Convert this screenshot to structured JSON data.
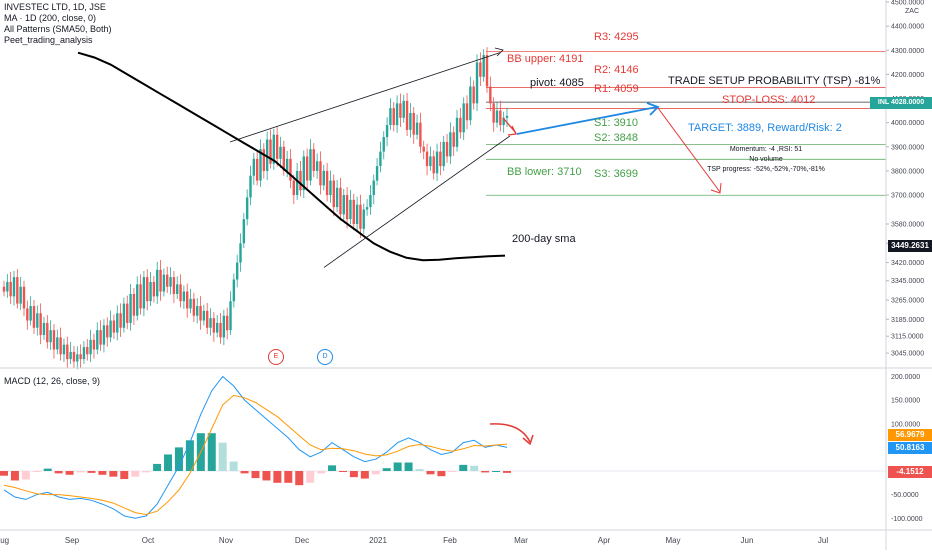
{
  "header": {
    "symbol_line": "INVESTEC LTD, 1D, JSE",
    "ma_line": "MA · 1D (200, close, 0)",
    "patterns_line": "All Patterns (SMA50, Both)",
    "script_line": "Peet_trading_analysis"
  },
  "currency": "ZAC",
  "levels": {
    "r3": "R3: 4295",
    "bb_upper": "BB upper: 4191",
    "r2": "R2: 4146",
    "pivot": "pivot: 4085",
    "r1": "R1: 4059",
    "tsp": "TRADE SETUP PROBABILITY (TSP) -81%",
    "stop_loss": "STOP-LOSS: 4012",
    "s1": "S1: 3910",
    "target": "TARGET: 3889, Reward/Risk: 2",
    "s2": "S2: 3848",
    "bb_lower": "BB lower: 3710",
    "s3": "S3: 3699",
    "momentum": "Momentum: -4 ,RSI: 51",
    "volume": "No volume",
    "tsp_progress": "TSP progress: -52%,-52%,-70%,-81%",
    "sma_label": "200-day sma"
  },
  "price_tags": {
    "last_symbol": "INL",
    "last_price": "4028.0000",
    "sma_price": "3449.2631"
  },
  "event_markers": [
    "E",
    "D"
  ],
  "macd": {
    "title": "MACD (12, 26, close, 9)",
    "signal_tag": "56.9679",
    "macd_tag": "50.8163",
    "hist_tag": "-4.1512"
  },
  "colors": {
    "up": "#26a69a",
    "down": "#ef5350",
    "macd_line": "#2196f3",
    "signal_line": "#ff9800",
    "hist_up_strong": "#26a69a",
    "hist_up_weak": "#b2dfdb",
    "hist_down_strong": "#ef5350",
    "hist_down_weak": "#ffcdd2",
    "level_red": "#e53935",
    "level_green": "#43a047",
    "level_blue": "#1e88e5"
  },
  "chart_data": [
    {
      "type": "candlestick",
      "ylim": [
        3000,
        4500
      ],
      "y_ticks": [
        "4500.0000",
        "4400.0000",
        "4300.0000",
        "4200.0000",
        "4100.0000",
        "4000.0000",
        "3900.0000",
        "3800.0000",
        "3700.0000",
        "3580.0000",
        "3500.0000",
        "3420.0000",
        "3345.0000",
        "3265.0000",
        "3185.0000",
        "3115.0000",
        "3045.0000"
      ],
      "x_ticks": [
        "Aug",
        "Sep",
        "Oct",
        "Nov",
        "Dec",
        "2021",
        "Feb",
        "Mar",
        "Apr",
        "May",
        "Jun",
        "Jul"
      ],
      "close_approx": [
        3300,
        3340,
        3280,
        3360,
        3250,
        3320,
        3230,
        3180,
        3240,
        3150,
        3210,
        3120,
        3170,
        3090,
        3140,
        3060,
        3110,
        3040,
        3080,
        3020,
        3050,
        3010,
        3040,
        3020,
        3070,
        3040,
        3100,
        3060,
        3140,
        3080,
        3160,
        3110,
        3180,
        3130,
        3210,
        3150,
        3250,
        3170,
        3290,
        3200,
        3330,
        3230,
        3360,
        3260,
        3340,
        3280,
        3390,
        3300,
        3370,
        3320,
        3360,
        3290,
        3330,
        3260,
        3300,
        3230,
        3270,
        3200,
        3240,
        3180,
        3220,
        3150,
        3190,
        3130,
        3170,
        3110,
        3200,
        3140,
        3260,
        3350,
        3420,
        3500,
        3600,
        3690,
        3780,
        3850,
        3760,
        3890,
        3800,
        3930,
        3830,
        3950,
        3850,
        3900,
        3800,
        3850,
        3760,
        3700,
        3800,
        3720,
        3860,
        3760,
        3890,
        3800,
        3840,
        3740,
        3800,
        3700,
        3760,
        3650,
        3730,
        3620,
        3700,
        3600,
        3680,
        3580,
        3660,
        3560,
        3640,
        3650,
        3700,
        3760,
        3820,
        3880,
        3940,
        3990,
        4060,
        3990,
        4080,
        4020,
        4090,
        3970,
        4040,
        3950,
        4000,
        3900,
        3880,
        3820,
        3860,
        3790,
        3880,
        3820,
        3920,
        3860,
        3960,
        3900,
        4020,
        3960,
        4080,
        4010,
        4150,
        4080,
        4250,
        4190,
        4280,
        4150,
        4080,
        4000,
        4050,
        3990,
        4020,
        4028
      ],
      "sma_200_approx": [
        4290,
        4270,
        4240,
        4200,
        4160,
        4120,
        4080,
        4040,
        4000,
        3960,
        3920,
        3880,
        3840,
        3780,
        3720,
        3660,
        3600,
        3550,
        3500,
        3465,
        3440,
        3430,
        3432,
        3438,
        3442,
        3446,
        3449
      ],
      "annotations": [
        "BB upper: 4191",
        "BB lower: 3710",
        "pivot: 4085",
        "R1: 4059",
        "R2: 4146",
        "R3: 4295",
        "S1: 3910",
        "S2: 3848",
        "S3: 3699",
        "STOP-LOSS: 4012",
        "TARGET: 3889, Reward/Risk: 2"
      ]
    },
    {
      "type": "macd",
      "ylim": [
        -120,
        220
      ],
      "y_ticks": [
        "200.0000",
        "150.0000",
        "100.0000",
        "50.0000",
        "0.0000",
        "-50.0000",
        "-100.0000"
      ],
      "series": [
        {
          "name": "MACD",
          "values": [
            -40,
            -55,
            -60,
            -50,
            -45,
            -55,
            -60,
            -58,
            -62,
            -70,
            -80,
            -95,
            -100,
            -95,
            -70,
            -30,
            10,
            60,
            120,
            170,
            200,
            180,
            150,
            130,
            110,
            90,
            70,
            45,
            30,
            40,
            60,
            45,
            30,
            20,
            25,
            40,
            60,
            70,
            60,
            45,
            35,
            40,
            60,
            65,
            50,
            55,
            50
          ]
        },
        {
          "name": "Signal",
          "values": [
            -30,
            -35,
            -42,
            -48,
            -50,
            -50,
            -52,
            -55,
            -58,
            -62,
            -68,
            -78,
            -88,
            -92,
            -85,
            -65,
            -40,
            -5,
            40,
            90,
            140,
            160,
            155,
            145,
            130,
            115,
            95,
            75,
            55,
            45,
            48,
            47,
            43,
            36,
            32,
            34,
            42,
            52,
            56,
            52,
            46,
            42,
            47,
            54,
            53,
            55,
            57
          ]
        },
        {
          "name": "Histogram",
          "values": [
            -10,
            -20,
            -18,
            -2,
            5,
            -5,
            -8,
            -3,
            -4,
            -8,
            -12,
            -17,
            -12,
            -3,
            15,
            35,
            50,
            65,
            80,
            80,
            60,
            20,
            -5,
            -15,
            -20,
            -25,
            -25,
            -30,
            -25,
            -5,
            12,
            -2,
            -13,
            -16,
            -7,
            6,
            18,
            18,
            4,
            -7,
            -11,
            -2,
            13,
            11,
            -3,
            0,
            -4
          ]
        }
      ]
    }
  ]
}
